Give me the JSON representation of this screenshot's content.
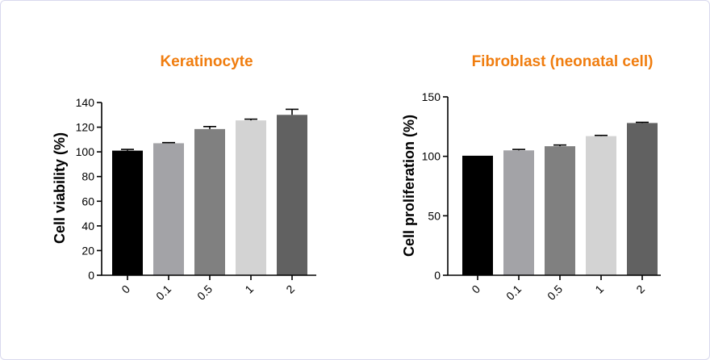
{
  "colors": {
    "title": "#F07D0F",
    "frame_border": "#D9D9EE",
    "axis": "#000000",
    "bars": [
      "#000000",
      "#A3A3A7",
      "#808080",
      "#D3D3D3",
      "#616161"
    ]
  },
  "chart_data": [
    {
      "type": "bar",
      "title": "Keratinocyte",
      "xlabel": "",
      "ylabel": "Cell viability (%)",
      "categories": [
        "0",
        "0.1",
        "0.5",
        "1",
        "2"
      ],
      "values": [
        101,
        107,
        118.5,
        125.5,
        130
      ],
      "errors": [
        1,
        0.5,
        2,
        1,
        4.5
      ],
      "ylim": [
        0,
        140
      ],
      "yticks": [
        0,
        20,
        40,
        60,
        80,
        100,
        120,
        140
      ],
      "grid": false,
      "legend": "none"
    },
    {
      "type": "bar",
      "title": "Fibroblast (neonatal cell)",
      "xlabel": "",
      "ylabel": "Cell proliferation (%)",
      "categories": [
        "0",
        "0.1",
        "0.5",
        "1",
        "2"
      ],
      "values": [
        100.5,
        105,
        108.5,
        117,
        128
      ],
      "errors": [
        0,
        0.8,
        1,
        0.6,
        0.6
      ],
      "ylim": [
        0,
        150
      ],
      "yticks": [
        0,
        50,
        100,
        150
      ],
      "grid": false,
      "legend": "none"
    }
  ]
}
